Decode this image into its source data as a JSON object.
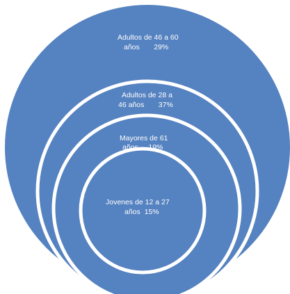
{
  "diagram": {
    "colors": {
      "fill": "#5582c0",
      "fill_dark": "#4a76b2",
      "ring": "#ffffff",
      "text": "#ffffff",
      "background": "#ffffff"
    },
    "circles": [
      {
        "line1": "Adultos de 46 a 60",
        "line2": "años       29%",
        "value_percent": 29
      },
      {
        "line1": "Adultos de 28 a",
        "line2": "46 años       37%",
        "value_percent": 37
      },
      {
        "line1": "Mayores de 61",
        "line2": "años     19%",
        "value_percent": 19
      },
      {
        "line1": "Jovenes de 12 a 27",
        "line2": "años  15%",
        "value_percent": 15
      }
    ]
  }
}
